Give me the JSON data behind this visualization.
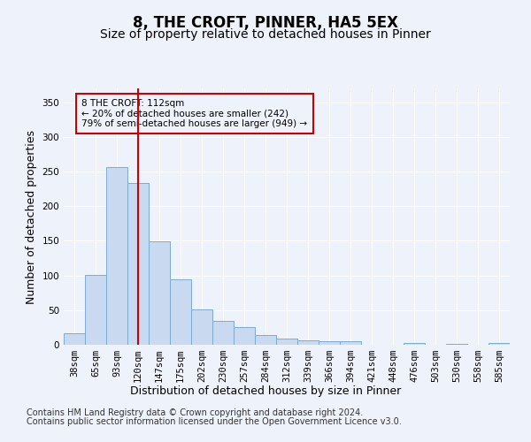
{
  "title": "8, THE CROFT, PINNER, HA5 5EX",
  "subtitle": "Size of property relative to detached houses in Pinner",
  "xlabel": "Distribution of detached houses by size in Pinner",
  "ylabel": "Number of detached properties",
  "footer_line1": "Contains HM Land Registry data © Crown copyright and database right 2024.",
  "footer_line2": "Contains public sector information licensed under the Open Government Licence v3.0.",
  "bar_labels": [
    "38sqm",
    "65sqm",
    "93sqm",
    "120sqm",
    "147sqm",
    "175sqm",
    "202sqm",
    "230sqm",
    "257sqm",
    "284sqm",
    "312sqm",
    "339sqm",
    "366sqm",
    "394sqm",
    "421sqm",
    "448sqm",
    "476sqm",
    "503sqm",
    "530sqm",
    "558sqm",
    "585sqm"
  ],
  "bar_values": [
    17,
    101,
    256,
    234,
    149,
    94,
    51,
    35,
    25,
    14,
    9,
    7,
    5,
    5,
    0,
    0,
    2,
    0,
    1,
    0,
    2
  ],
  "bar_color": "#c9d9f0",
  "bar_edgecolor": "#7aacd4",
  "vline_x": 3.0,
  "vline_color": "#cc0000",
  "annotation_text": "8 THE CROFT: 112sqm\n← 20% of detached houses are smaller (242)\n79% of semi-detached houses are larger (949) →",
  "ylim": [
    0,
    370
  ],
  "yticks": [
    0,
    50,
    100,
    150,
    200,
    250,
    300,
    350
  ],
  "background_color": "#eef2fb",
  "grid_color": "#ffffff",
  "title_fontsize": 12,
  "subtitle_fontsize": 10,
  "axis_label_fontsize": 9,
  "tick_fontsize": 7.5,
  "footer_fontsize": 7
}
